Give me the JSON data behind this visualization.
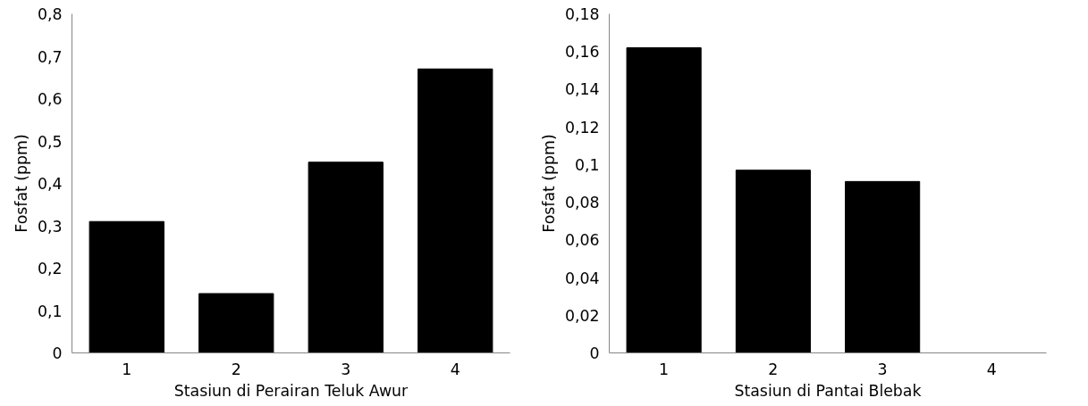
{
  "chart_data": [
    {
      "type": "bar",
      "xlabel": "Stasiun di Perairan Teluk Awur",
      "ylabel": "Fosfat (ppm)",
      "categories": [
        "1",
        "2",
        "3",
        "4"
      ],
      "values": [
        0.31,
        0.14,
        0.45,
        0.67
      ],
      "color": "#000000",
      "ylim": [
        0,
        0.8
      ],
      "yticks": [
        {
          "value": 0,
          "label": "0"
        },
        {
          "value": 0.1,
          "label": "0,1"
        },
        {
          "value": 0.2,
          "label": "0,2"
        },
        {
          "value": 0.3,
          "label": "0,3"
        },
        {
          "value": 0.4,
          "label": "0,4"
        },
        {
          "value": 0.5,
          "label": "0,5"
        },
        {
          "value": 0.6,
          "label": "0,6"
        },
        {
          "value": 0.7,
          "label": "0,7"
        },
        {
          "value": 0.8,
          "label": "0,8"
        }
      ],
      "grid": false
    },
    {
      "type": "bar",
      "xlabel": "Stasiun di Pantai Blebak",
      "ylabel": "Fosfat (ppm)",
      "categories": [
        "1",
        "2",
        "3",
        "4"
      ],
      "values": [
        0.162,
        0.097,
        0.091,
        null
      ],
      "color": "#000000",
      "ylim": [
        0,
        0.18
      ],
      "yticks": [
        {
          "value": 0,
          "label": "0"
        },
        {
          "value": 0.02,
          "label": "0,02"
        },
        {
          "value": 0.04,
          "label": "0,04"
        },
        {
          "value": 0.06,
          "label": "0,06"
        },
        {
          "value": 0.08,
          "label": "0,08"
        },
        {
          "value": 0.1,
          "label": "0,1"
        },
        {
          "value": 0.12,
          "label": "0,12"
        },
        {
          "value": 0.14,
          "label": "0,14"
        },
        {
          "value": 0.16,
          "label": "0,16"
        },
        {
          "value": 0.18,
          "label": "0,18"
        }
      ],
      "grid": false
    }
  ]
}
